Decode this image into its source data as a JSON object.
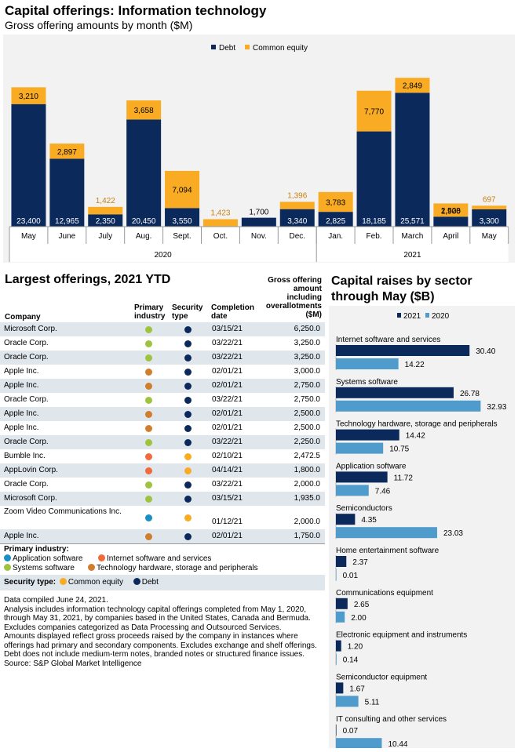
{
  "header": {
    "title": "Capital offerings: Information technology",
    "subtitle": "Gross offering amounts by month ($M)"
  },
  "colors": {
    "debt": "#0b2a5b",
    "equity": "#f9ac23",
    "y2021": "#0b2a5b",
    "y2020": "#4f9ccc",
    "app_software": "#1a8fc6",
    "internet": "#f06a3a",
    "systems": "#9ec43f",
    "hardware": "#d27c2e"
  },
  "chart_data": [
    {
      "type": "bar",
      "stacked": true,
      "title": "Capital offerings: Information technology",
      "subtitle": "Gross offering amounts by month ($M)",
      "legend_position": "top-center",
      "categories": [
        "May",
        "June",
        "July",
        "Aug.",
        "Sept.",
        "Oct.",
        "Nov.",
        "Dec.",
        "Jan.",
        "Feb.",
        "March",
        "April",
        "May"
      ],
      "year_groups": [
        {
          "label": "2020",
          "months": 8
        },
        {
          "label": "2021",
          "months": 5
        }
      ],
      "series": [
        {
          "name": "Debt",
          "values": [
            23400,
            12965,
            2350,
            20450,
            3550,
            0,
            1700,
            3340,
            2825,
            18185,
            25571,
            1900,
            3300
          ]
        },
        {
          "name": "Common equity",
          "values": [
            3210,
            2897,
            1422,
            3658,
            7094,
            1423,
            0,
            1396,
            3783,
            7770,
            2849,
            2528,
            697
          ]
        }
      ],
      "debt_labels": [
        "23,400",
        "12,965",
        "2,350",
        "20,450",
        "3,550",
        "",
        "1,700",
        "3,340",
        "2,825",
        "18,185",
        "25,571",
        "1,900",
        "3,300"
      ],
      "equity_labels": [
        "3,210",
        "2,897",
        "1,422",
        "3,658",
        "7,094",
        "1,423",
        "",
        "1,396",
        "3,783",
        "7,770",
        "2,849",
        "2,528",
        "697"
      ],
      "ylim": [
        0,
        31000
      ]
    },
    {
      "type": "bar",
      "orientation": "horizontal",
      "title": "Capital raises by sector through May ($B)",
      "legend_position": "top-center",
      "categories": [
        "Internet software and services",
        "Systems software",
        "Technology hardware, storage and peripherals",
        "Application software",
        "Semiconductors",
        "Home entertainment software",
        "Communications equipment",
        "Electronic equipment and instruments",
        "Semiconductor equipment",
        "IT consulting and other services"
      ],
      "series": [
        {
          "name": "2021",
          "values": [
            30.4,
            26.78,
            14.42,
            11.72,
            4.35,
            2.37,
            2.65,
            1.2,
            1.67,
            0.07
          ]
        },
        {
          "name": "2020",
          "values": [
            14.22,
            32.93,
            10.75,
            7.46,
            23.03,
            0.01,
            2.0,
            0.14,
            5.11,
            10.44
          ]
        }
      ],
      "labels_2021": [
        "30.40",
        "26.78",
        "14.42",
        "11.72",
        "4.35",
        "2.37",
        "2.65",
        "1.20",
        "1.67",
        "0.07"
      ],
      "labels_2020": [
        "14.22",
        "32.93",
        "10.75",
        "7.46",
        "23.03",
        "0.01",
        "2.00",
        "0.14",
        "5.11",
        "10.44"
      ],
      "xlim": [
        0,
        35
      ]
    },
    {
      "type": "table",
      "title": "Largest offerings, 2021 YTD",
      "columns": [
        "Company",
        "Primary industry",
        "Security type",
        "Completion date",
        "Gross offering amount including overallotments ($M)"
      ]
    }
  ],
  "table": {
    "title": "Largest offerings, 2021 YTD",
    "headers": {
      "company": "Company",
      "industry": "Primary industry",
      "type": "Security type",
      "date": "Completion date",
      "amount": "Gross offering amount including overallotments ($M)"
    },
    "rows": [
      {
        "company": "Microsoft Corp.",
        "industry": "systems",
        "type": "debt",
        "date": "03/15/21",
        "amount": "6,250.0"
      },
      {
        "company": "Oracle Corp.",
        "industry": "systems",
        "type": "debt",
        "date": "03/22/21",
        "amount": "3,250.0"
      },
      {
        "company": "Oracle Corp.",
        "industry": "systems",
        "type": "debt",
        "date": "03/22/21",
        "amount": "3,250.0"
      },
      {
        "company": "Apple Inc.",
        "industry": "hardware",
        "type": "debt",
        "date": "02/01/21",
        "amount": "3,000.0"
      },
      {
        "company": "Apple Inc.",
        "industry": "hardware",
        "type": "debt",
        "date": "02/01/21",
        "amount": "2,750.0"
      },
      {
        "company": "Oracle Corp.",
        "industry": "systems",
        "type": "debt",
        "date": "03/22/21",
        "amount": "2,750.0"
      },
      {
        "company": "Apple Inc.",
        "industry": "hardware",
        "type": "debt",
        "date": "02/01/21",
        "amount": "2,500.0"
      },
      {
        "company": "Apple Inc.",
        "industry": "hardware",
        "type": "debt",
        "date": "02/01/21",
        "amount": "2,500.0"
      },
      {
        "company": "Oracle Corp.",
        "industry": "systems",
        "type": "debt",
        "date": "03/22/21",
        "amount": "2,250.0"
      },
      {
        "company": "Bumble Inc.",
        "industry": "internet",
        "type": "equity",
        "date": "02/10/21",
        "amount": "2,472.5"
      },
      {
        "company": "AppLovin Corp.",
        "industry": "internet",
        "type": "equity",
        "date": "04/14/21",
        "amount": "1,800.0"
      },
      {
        "company": "Oracle Corp.",
        "industry": "systems",
        "type": "debt",
        "date": "03/22/21",
        "amount": "2,000.0"
      },
      {
        "company": "Microsoft Corp.",
        "industry": "systems",
        "type": "debt",
        "date": "03/15/21",
        "amount": "1,935.0"
      },
      {
        "company": "Zoom Video Communications Inc.",
        "industry": "app_software",
        "type": "equity",
        "date": "01/12/21",
        "amount": "2,000.0"
      },
      {
        "company": "Apple Inc.",
        "industry": "hardware",
        "type": "debt",
        "date": "02/01/21",
        "amount": "1,750.0"
      }
    ]
  },
  "legend": {
    "industry_title": "Primary industry:",
    "app_software": "Application software",
    "internet": "Internet software and services",
    "systems": "Systems software",
    "hardware": "Technology hardware, storage and peripherals",
    "security_title": "Security type:",
    "equity": "Common equity",
    "debt": "Debt"
  },
  "notes": [
    "Data compiled June 24, 2021.",
    "Analysis includes information technology capital offerings completed from May 1, 2020, through May 31, 2021,  by companies based in the United States, Canada and Bermuda. Excludes companies categorized as Data Processing and Outsourced Services.",
    "Amounts displayed reflect gross proceeds raised by the company in instances where offerings had primary and secondary components. Excludes exchange and shelf offerings.",
    "Debt does not include medium-term notes, branded notes or structured finance issues.",
    "Source: S&P Global Market Intelligence"
  ],
  "sector_chart": {
    "title": "Capital raises by sector through May ($B)"
  }
}
